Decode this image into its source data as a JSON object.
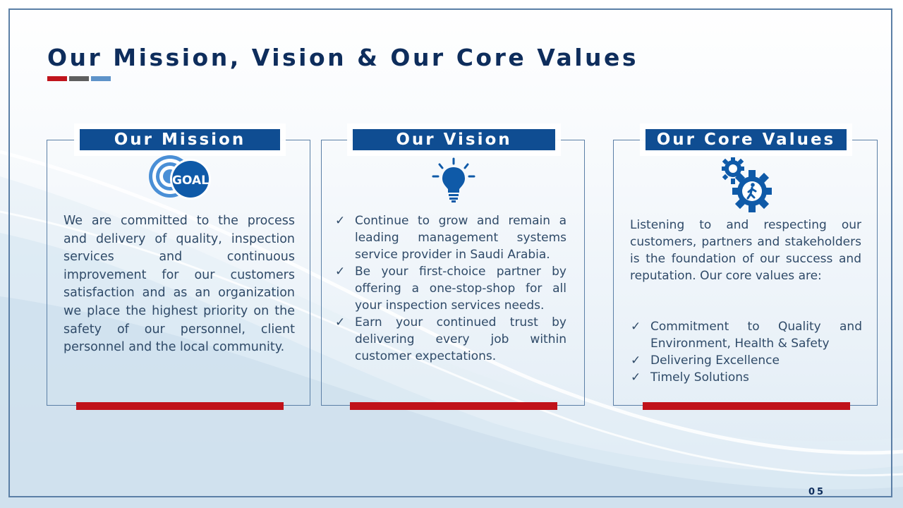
{
  "slide": {
    "title": "Our Mission, Vision & Our Core Values",
    "page_number": "05",
    "colors": {
      "navy": "#0e2d5c",
      "header_blue": "#0f4d92",
      "accent_red": "#c0121a",
      "accent_gray": "#5f5f5f",
      "accent_light_blue": "#5e93c9",
      "text": "#2f4a68",
      "border": "#5b7fa6"
    }
  },
  "mission": {
    "header": "Our Mission",
    "icon": "goal-target-icon",
    "icon_label": "GOAL",
    "text": "We are committed to the process and delivery of quality, inspection services and continuous improvement for our customers satisfaction and as an organization we place the highest priority on the safety of our personnel, client personnel and the local community."
  },
  "vision": {
    "header": "Our Vision",
    "icon": "lightbulb-icon",
    "items": [
      "Continue to grow and remain a leading management systems service provider in Saudi Arabia.",
      "Be your first-choice partner by offering a one-stop-shop for all your inspection services needs.",
      "Earn your continued trust by delivering every job within customer expectations."
    ]
  },
  "values": {
    "header": "Our Core Values",
    "icon": "gears-person-icon",
    "intro": "Listening to and respecting our customers, partners and stakeholders is the foundation of our success and reputation. Our core values are:",
    "items": [
      "Commitment to Quality and Environment, Health & Safety",
      "Delivering Excellence",
      "Timely Solutions"
    ]
  }
}
